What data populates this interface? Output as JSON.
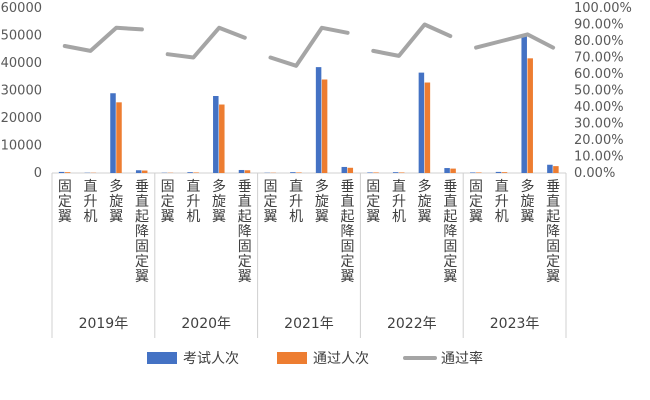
{
  "chart_data": {
    "type": "bar",
    "categories": [
      "固定翼",
      "直升机",
      "多旋翼",
      "垂直起降固定翼"
    ],
    "groups": [
      "2019年",
      "2020年",
      "2021年",
      "2022年",
      "2023年"
    ],
    "series": [
      {
        "name": "考试人次",
        "kind": "bar",
        "axis": "left",
        "color": "#4472C4",
        "values": [
          [
            400,
            100,
            29000,
            1000
          ],
          [
            100,
            300,
            28000,
            1100
          ],
          [
            100,
            300,
            38500,
            2200
          ],
          [
            200,
            300,
            36500,
            1800
          ],
          [
            200,
            400,
            50000,
            3000
          ]
        ]
      },
      {
        "name": "通过人次",
        "kind": "bar",
        "axis": "left",
        "color": "#ED7D31",
        "values": [
          [
            300,
            100,
            25700,
            900
          ],
          [
            100,
            200,
            24900,
            1000
          ],
          [
            100,
            200,
            34000,
            1900
          ],
          [
            200,
            200,
            32900,
            1600
          ],
          [
            200,
            300,
            41700,
            2500
          ]
        ]
      },
      {
        "name": "通过率",
        "kind": "line",
        "axis": "right",
        "color": "#A5A5A5",
        "values": [
          [
            0.77,
            0.74,
            0.88,
            0.87
          ],
          [
            0.72,
            0.7,
            0.88,
            0.82
          ],
          [
            0.7,
            0.65,
            0.88,
            0.85
          ],
          [
            0.74,
            0.71,
            0.9,
            0.83
          ],
          [
            0.76,
            0.8,
            0.84,
            0.76
          ]
        ]
      }
    ],
    "y_left": {
      "ylim": [
        0,
        60000
      ],
      "ticks": [
        "0",
        "10000",
        "20000",
        "30000",
        "40000",
        "50000",
        "60000"
      ]
    },
    "y_right": {
      "ylim": [
        0,
        1
      ],
      "ticks": [
        "0.00%",
        "10.00%",
        "20.00%",
        "30.00%",
        "40.00%",
        "50.00%",
        "60.00%",
        "70.00%",
        "80.00%",
        "90.00%",
        "100.00%"
      ]
    },
    "legend_position": "bottom",
    "grid": false
  }
}
